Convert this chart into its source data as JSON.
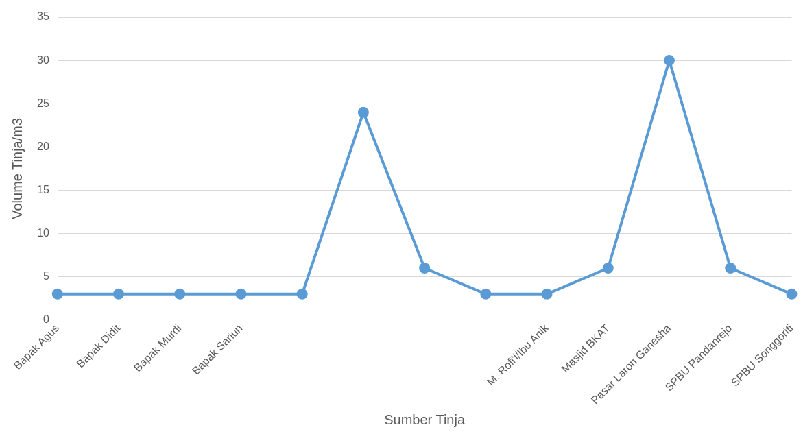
{
  "chart_data": {
    "type": "line",
    "xlabel": "Sumber Tinja",
    "ylabel": "Volume Tinja/m3",
    "categories": [
      "Bapak Agus",
      "Bapak Didit",
      "Bapak Murdi",
      "Bapak Sariun",
      null,
      null,
      null,
      null,
      "M. Rofi'i/Ibu Anik",
      "Masjid BKAT",
      "Pasar Laron Ganesha",
      "SPBU Pandanrejo",
      "SPBU Songgoriti"
    ],
    "series": [
      {
        "color": "#5b9bd5",
        "values": [
          3,
          3,
          3,
          3,
          3,
          24,
          6,
          3,
          3,
          6,
          30,
          6,
          3
        ]
      }
    ],
    "ylim": [
      0,
      35
    ],
    "yticks": [
      0,
      5,
      10,
      15,
      20,
      25,
      30,
      35
    ],
    "grid": "y",
    "legend": false,
    "marker": "circle",
    "line_style": "solid"
  }
}
